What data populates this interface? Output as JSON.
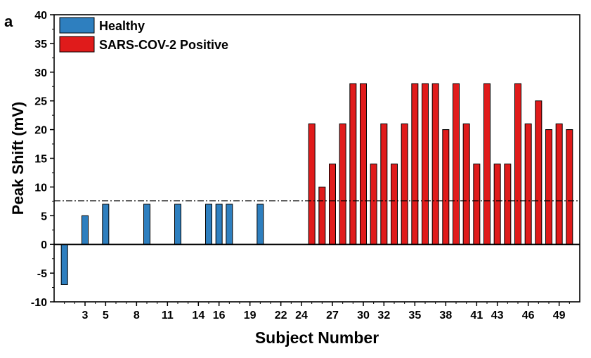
{
  "panel_label": "a",
  "chart_data": {
    "type": "bar",
    "xlabel": "Subject Number",
    "ylabel": "Peak Shift (mV)",
    "ylim": [
      -10,
      40
    ],
    "yticks": [
      "40",
      "35",
      "30",
      "25",
      "20",
      "15",
      "10",
      "5",
      "0",
      "-5",
      "-10"
    ],
    "xlim": [
      0,
      51
    ],
    "x_tick_labels": [
      "3",
      "5",
      "8",
      "11",
      "14",
      "16",
      "19",
      "22",
      "24",
      "27",
      "30",
      "32",
      "35",
      "38",
      "41",
      "43",
      "46",
      "49"
    ],
    "x_tick_positions": [
      3,
      5,
      8,
      11,
      14,
      16,
      19,
      22,
      24,
      27,
      30,
      32,
      35,
      38,
      41,
      43,
      46,
      49
    ],
    "threshold": 7.6,
    "threshold_style": "dash-dot",
    "legend_position": "top-left",
    "grid": false,
    "series": [
      {
        "name": "Healthy",
        "color": "#2e7fbf",
        "points": [
          {
            "x": 1,
            "y": -7
          },
          {
            "x": 2,
            "y": 0
          },
          {
            "x": 3,
            "y": 5
          },
          {
            "x": 4,
            "y": 0
          },
          {
            "x": 5,
            "y": 7
          },
          {
            "x": 6,
            "y": 0
          },
          {
            "x": 7,
            "y": 0
          },
          {
            "x": 8,
            "y": 0
          },
          {
            "x": 9,
            "y": 7
          },
          {
            "x": 10,
            "y": 0
          },
          {
            "x": 11,
            "y": 0
          },
          {
            "x": 12,
            "y": 7
          },
          {
            "x": 13,
            "y": 0
          },
          {
            "x": 14,
            "y": 0
          },
          {
            "x": 15,
            "y": 7
          },
          {
            "x": 16,
            "y": 7
          },
          {
            "x": 17,
            "y": 7
          },
          {
            "x": 18,
            "y": 0
          },
          {
            "x": 19,
            "y": 0
          },
          {
            "x": 20,
            "y": 7
          },
          {
            "x": 21,
            "y": 0
          },
          {
            "x": 22,
            "y": 0
          },
          {
            "x": 23,
            "y": 0
          },
          {
            "x": 24,
            "y": 0
          }
        ]
      },
      {
        "name": "SARS-COV-2 Positive",
        "color": "#e01b1b",
        "points": [
          {
            "x": 25,
            "y": 21
          },
          {
            "x": 26,
            "y": 10
          },
          {
            "x": 27,
            "y": 14
          },
          {
            "x": 28,
            "y": 21
          },
          {
            "x": 29,
            "y": 28
          },
          {
            "x": 30,
            "y": 28
          },
          {
            "x": 31,
            "y": 14
          },
          {
            "x": 32,
            "y": 21
          },
          {
            "x": 33,
            "y": 14
          },
          {
            "x": 34,
            "y": 21
          },
          {
            "x": 35,
            "y": 28
          },
          {
            "x": 36,
            "y": 28
          },
          {
            "x": 37,
            "y": 28
          },
          {
            "x": 38,
            "y": 20
          },
          {
            "x": 39,
            "y": 28
          },
          {
            "x": 40,
            "y": 21
          },
          {
            "x": 41,
            "y": 14
          },
          {
            "x": 42,
            "y": 28
          },
          {
            "x": 43,
            "y": 14
          },
          {
            "x": 44,
            "y": 14
          },
          {
            "x": 45,
            "y": 28
          },
          {
            "x": 46,
            "y": 21
          },
          {
            "x": 47,
            "y": 25
          },
          {
            "x": 48,
            "y": 20
          },
          {
            "x": 49,
            "y": 21
          },
          {
            "x": 50,
            "y": 20
          }
        ]
      }
    ]
  }
}
